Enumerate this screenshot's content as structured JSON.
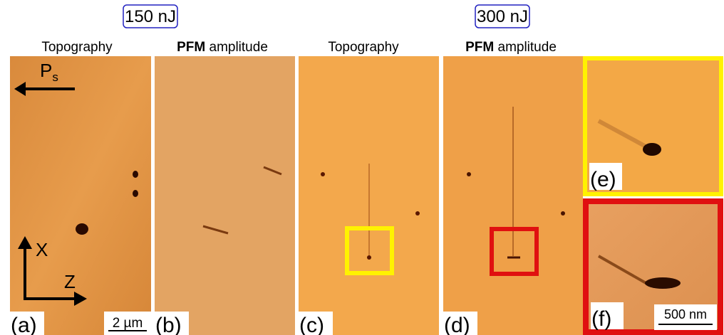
{
  "header": {
    "groups": [
      {
        "energy": "150 nJ"
      },
      {
        "energy": "300 nJ"
      }
    ]
  },
  "panels": [
    {
      "label": "(a)",
      "title": "Topography"
    },
    {
      "label": "(b)",
      "title_bold": "PFM",
      "title": "amplitude"
    },
    {
      "label": "(c)",
      "title": "Topography"
    },
    {
      "label": "(d)",
      "title_bold": "PFM",
      "title": "amplitude"
    },
    {
      "label": "(e)"
    },
    {
      "label": "(f)"
    }
  ],
  "annotations": {
    "polarization": "P",
    "polarization_sub": "s",
    "axis_x": "X",
    "axis_z": "Z",
    "scale_a": "2 µm",
    "scale_f": "500 nm"
  }
}
